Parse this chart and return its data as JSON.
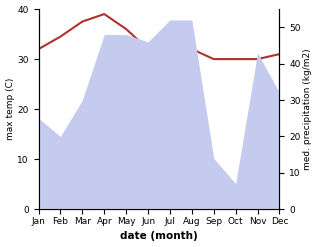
{
  "months": [
    "Jan",
    "Feb",
    "Mar",
    "Apr",
    "May",
    "Jun",
    "Jul",
    "Aug",
    "Sep",
    "Oct",
    "Nov",
    "Dec"
  ],
  "temperature": [
    32,
    34.5,
    37.5,
    39,
    36,
    32,
    32,
    32,
    30,
    30,
    30,
    31
  ],
  "precipitation": [
    25,
    20,
    30,
    48,
    48,
    46,
    52,
    52,
    14,
    7,
    43,
    32
  ],
  "temp_color": "#b03030",
  "precip_fill_color": "#c5cbee",
  "left_ylabel": "max temp (C)",
  "right_ylabel": "med. precipitation (kg/m2)",
  "xlabel": "date (month)",
  "ylim_left": [
    0,
    40
  ],
  "ylim_right": [
    0,
    55
  ],
  "left_yticks": [
    0,
    10,
    20,
    30,
    40
  ],
  "right_yticks": [
    0,
    10,
    20,
    30,
    40,
    50
  ],
  "background_color": "#ffffff"
}
